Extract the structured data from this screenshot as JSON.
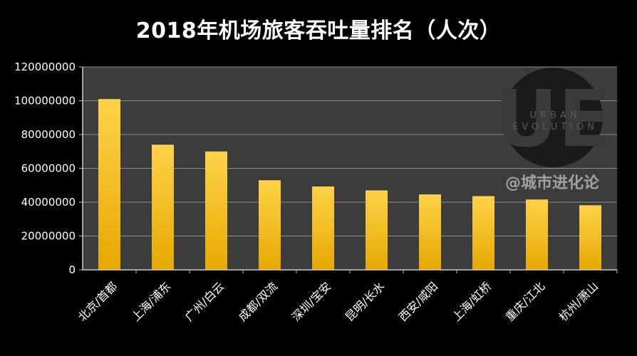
{
  "chart_data": {
    "type": "bar",
    "title": "2018年机场旅客吞吐量排名（人次）",
    "categories": [
      "北京/首都",
      "上海/浦东",
      "广州/白云",
      "成都/双流",
      "深圳/宝安",
      "昆明/长水",
      "西安/咸阳",
      "上海/虹桥",
      "重庆/江北",
      "杭州/萧山"
    ],
    "values": [
      101000000,
      74000000,
      70000000,
      53000000,
      49300000,
      47000000,
      44600000,
      43600000,
      41600000,
      38200000
    ],
    "ylim": [
      0,
      120000000
    ],
    "yticks": [
      "0",
      "20000000",
      "40000000",
      "60000000",
      "80000000",
      "100000000",
      "120000000"
    ],
    "grid": true,
    "colors": {
      "bar_top": "#ffd24a",
      "bar_bottom": "#e6a800",
      "plot_bg": "#3c3c3c",
      "grid": "#8a8a8a"
    }
  },
  "watermark": {
    "handle": "@城市进化论",
    "logo_word_1": "URBAN",
    "logo_word_2": "EVOLUTION",
    "logo_letters": "UE"
  }
}
